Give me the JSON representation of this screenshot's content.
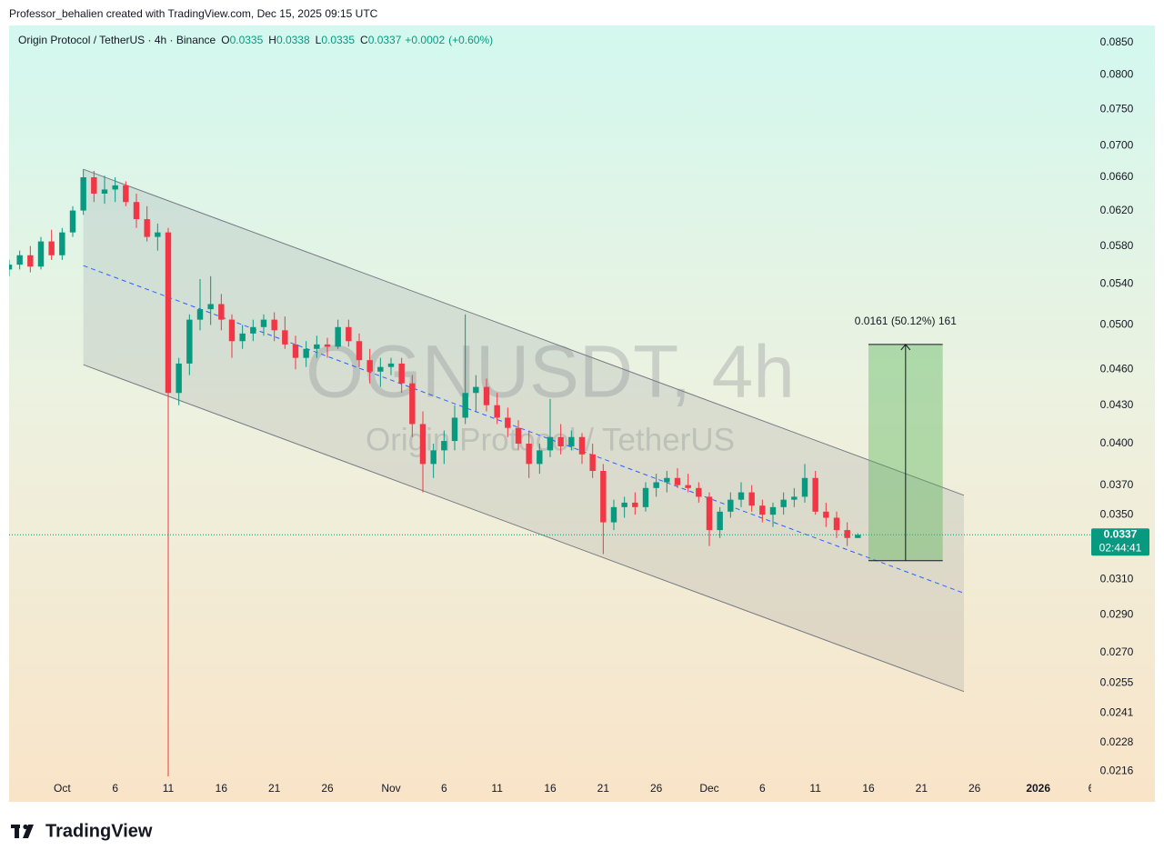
{
  "chart_data": {
    "type": "candlestick",
    "credit": "Professor_behalien created with TradingView.com, Dec 15, 2025 09:15 UTC",
    "title": "Origin Protocol / TetherUS · 4h · Binance",
    "ohlc_labels": [
      "O",
      "H",
      "L",
      "C"
    ],
    "change": "+0.0002",
    "change_pct": "(+0.60%)",
    "watermark": {
      "symbol": "OGNUSDT, 4h",
      "name": "Origin Protocol / TetherUS"
    },
    "countdown": "02:44:41",
    "footer_brand": "TradingView",
    "up_color": "#089981",
    "down_color": "#f23645",
    "log_scale": true,
    "grid": false,
    "xlim": [
      "2025-09-26",
      "2026-01-06"
    ],
    "ylim": [
      0.0204,
      0.0878
    ],
    "xticks": [
      {
        "value": "2025-10-01",
        "label": "Oct"
      },
      {
        "value": "2025-10-06",
        "label": "6"
      },
      {
        "value": "2025-10-11",
        "label": "11"
      },
      {
        "value": "2025-10-16",
        "label": "16"
      },
      {
        "value": "2025-10-21",
        "label": "21"
      },
      {
        "value": "2025-10-26",
        "label": "26"
      },
      {
        "value": "2025-11-01",
        "label": "Nov"
      },
      {
        "value": "2025-11-06",
        "label": "6"
      },
      {
        "value": "2025-11-11",
        "label": "11"
      },
      {
        "value": "2025-11-16",
        "label": "16"
      },
      {
        "value": "2025-11-21",
        "label": "21"
      },
      {
        "value": "2025-11-26",
        "label": "26"
      },
      {
        "value": "2025-12-01",
        "label": "Dec"
      },
      {
        "value": "2025-12-06",
        "label": "6"
      },
      {
        "value": "2025-12-11",
        "label": "11"
      },
      {
        "value": "2025-12-16",
        "label": "16"
      },
      {
        "value": "2025-12-21",
        "label": "21"
      },
      {
        "value": "2025-12-26",
        "label": "26"
      },
      {
        "value": "2026-01-01",
        "label": "2026"
      },
      {
        "value": "2026-01-06",
        "label": "6"
      }
    ],
    "yticks": [
      {
        "value": 0.085,
        "label": "0.0850"
      },
      {
        "value": 0.08,
        "label": "0.0800"
      },
      {
        "value": 0.075,
        "label": "0.0750"
      },
      {
        "value": 0.07,
        "label": "0.0700"
      },
      {
        "value": 0.066,
        "label": "0.0660"
      },
      {
        "value": 0.062,
        "label": "0.0620"
      },
      {
        "value": 0.058,
        "label": "0.0580"
      },
      {
        "value": 0.054,
        "label": "0.0540"
      },
      {
        "value": 0.05,
        "label": "0.0500"
      },
      {
        "value": 0.046,
        "label": "0.0460"
      },
      {
        "value": 0.043,
        "label": "0.0430"
      },
      {
        "value": 0.04,
        "label": "0.0400"
      },
      {
        "value": 0.037,
        "label": "0.0370"
      },
      {
        "value": 0.035,
        "label": "0.0350"
      },
      {
        "value": 0.031,
        "label": "0.0310"
      },
      {
        "value": 0.029,
        "label": "0.0290"
      },
      {
        "value": 0.027,
        "label": "0.0270"
      },
      {
        "value": 0.0255,
        "label": "0.0255"
      },
      {
        "value": 0.0241,
        "label": "0.0241"
      },
      {
        "value": 0.0228,
        "label": "0.0228"
      },
      {
        "value": 0.0216,
        "label": "0.0216"
      }
    ],
    "x": [
      "2025-09-26",
      "2025-09-27",
      "2025-09-28",
      "2025-09-29",
      "2025-09-30",
      "2025-10-01",
      "2025-10-02",
      "2025-10-03",
      "2025-10-04",
      "2025-10-05",
      "2025-10-06",
      "2025-10-07",
      "2025-10-08",
      "2025-10-09",
      "2025-10-10",
      "2025-10-11",
      "2025-10-12",
      "2025-10-13",
      "2025-10-14",
      "2025-10-15",
      "2025-10-16",
      "2025-10-17",
      "2025-10-18",
      "2025-10-19",
      "2025-10-20",
      "2025-10-21",
      "2025-10-22",
      "2025-10-23",
      "2025-10-24",
      "2025-10-25",
      "2025-10-26",
      "2025-10-27",
      "2025-10-28",
      "2025-10-29",
      "2025-10-30",
      "2025-10-31",
      "2025-11-01",
      "2025-11-02",
      "2025-11-03",
      "2025-11-04",
      "2025-11-05",
      "2025-11-06",
      "2025-11-07",
      "2025-11-08",
      "2025-11-09",
      "2025-11-10",
      "2025-11-11",
      "2025-11-12",
      "2025-11-13",
      "2025-11-14",
      "2025-11-15",
      "2025-11-16",
      "2025-11-17",
      "2025-11-18",
      "2025-11-19",
      "2025-11-20",
      "2025-11-21",
      "2025-11-22",
      "2025-11-23",
      "2025-11-24",
      "2025-11-25",
      "2025-11-26",
      "2025-11-27",
      "2025-11-28",
      "2025-11-29",
      "2025-11-30",
      "2025-12-01",
      "2025-12-02",
      "2025-12-03",
      "2025-12-04",
      "2025-12-05",
      "2025-12-06",
      "2025-12-07",
      "2025-12-08",
      "2025-12-09",
      "2025-12-10",
      "2025-12-11",
      "2025-12-12",
      "2025-12-13",
      "2025-12-14",
      "2025-12-15"
    ],
    "open": [
      0.0555,
      0.056,
      0.057,
      0.0558,
      0.0585,
      0.057,
      0.0595,
      0.062,
      0.066,
      0.064,
      0.0645,
      0.065,
      0.063,
      0.061,
      0.059,
      0.0595,
      0.044,
      0.0465,
      0.0505,
      0.0515,
      0.052,
      0.0505,
      0.0485,
      0.0492,
      0.0498,
      0.0505,
      0.0495,
      0.0482,
      0.047,
      0.0478,
      0.0482,
      0.048,
      0.0498,
      0.0485,
      0.0468,
      0.0458,
      0.0462,
      0.0465,
      0.0448,
      0.0415,
      0.0385,
      0.0395,
      0.0402,
      0.042,
      0.044,
      0.0445,
      0.043,
      0.042,
      0.0412,
      0.04,
      0.0385,
      0.0395,
      0.0405,
      0.0398,
      0.0405,
      0.0392,
      0.038,
      0.0345,
      0.0355,
      0.0358,
      0.0355,
      0.0368,
      0.0372,
      0.0375,
      0.037,
      0.0368,
      0.0362,
      0.034,
      0.0352,
      0.036,
      0.0365,
      0.0356,
      0.035,
      0.0355,
      0.036,
      0.0362,
      0.0375,
      0.0352,
      0.0348,
      0.034,
      0.0335
    ],
    "high": [
      0.0565,
      0.0575,
      0.058,
      0.059,
      0.0598,
      0.06,
      0.0625,
      0.067,
      0.0668,
      0.0662,
      0.066,
      0.0655,
      0.064,
      0.0625,
      0.0605,
      0.06,
      0.047,
      0.051,
      0.0545,
      0.0548,
      0.053,
      0.051,
      0.05,
      0.0505,
      0.051,
      0.0512,
      0.0508,
      0.049,
      0.0485,
      0.049,
      0.0488,
      0.0505,
      0.0505,
      0.0492,
      0.0478,
      0.047,
      0.047,
      0.047,
      0.0455,
      0.0425,
      0.04,
      0.041,
      0.043,
      0.051,
      0.0455,
      0.0452,
      0.044,
      0.0428,
      0.0418,
      0.041,
      0.04,
      0.0435,
      0.0415,
      0.041,
      0.0408,
      0.04,
      0.0385,
      0.036,
      0.0362,
      0.0365,
      0.0372,
      0.0378,
      0.038,
      0.0382,
      0.0378,
      0.0372,
      0.0365,
      0.0355,
      0.0365,
      0.0372,
      0.037,
      0.036,
      0.0358,
      0.0365,
      0.0368,
      0.0385,
      0.038,
      0.0358,
      0.0352,
      0.0345,
      0.0338
    ],
    "low": [
      0.0548,
      0.0555,
      0.0552,
      0.0555,
      0.0565,
      0.0565,
      0.059,
      0.0615,
      0.063,
      0.0628,
      0.063,
      0.0625,
      0.06,
      0.0585,
      0.0575,
      0.021,
      0.043,
      0.0455,
      0.0495,
      0.05,
      0.0495,
      0.047,
      0.0478,
      0.0485,
      0.049,
      0.0485,
      0.0478,
      0.046,
      0.0462,
      0.047,
      0.047,
      0.0478,
      0.048,
      0.0462,
      0.0448,
      0.0445,
      0.0455,
      0.044,
      0.0405,
      0.0365,
      0.0375,
      0.0385,
      0.0395,
      0.0415,
      0.0425,
      0.0425,
      0.0415,
      0.0405,
      0.0395,
      0.0375,
      0.0378,
      0.039,
      0.0392,
      0.0395,
      0.0385,
      0.0375,
      0.0325,
      0.034,
      0.0348,
      0.035,
      0.0352,
      0.0362,
      0.0365,
      0.0368,
      0.0365,
      0.0358,
      0.033,
      0.0335,
      0.0348,
      0.0355,
      0.0352,
      0.0345,
      0.0342,
      0.035,
      0.0355,
      0.0358,
      0.035,
      0.0342,
      0.0335,
      0.033,
      0.0335
    ],
    "close": [
      0.056,
      0.057,
      0.0558,
      0.0585,
      0.057,
      0.0595,
      0.062,
      0.066,
      0.064,
      0.0645,
      0.065,
      0.063,
      0.061,
      0.059,
      0.0595,
      0.044,
      0.0465,
      0.0505,
      0.0515,
      0.052,
      0.0505,
      0.0485,
      0.0492,
      0.0498,
      0.0505,
      0.0495,
      0.0482,
      0.047,
      0.0478,
      0.0482,
      0.048,
      0.0498,
      0.0485,
      0.0468,
      0.0458,
      0.0462,
      0.0465,
      0.0448,
      0.0415,
      0.0385,
      0.0395,
      0.0402,
      0.042,
      0.044,
      0.0445,
      0.043,
      0.042,
      0.0412,
      0.04,
      0.0385,
      0.0395,
      0.0405,
      0.0398,
      0.0405,
      0.0392,
      0.038,
      0.0345,
      0.0355,
      0.0358,
      0.0355,
      0.0368,
      0.0372,
      0.0375,
      0.037,
      0.0368,
      0.0362,
      0.034,
      0.0352,
      0.036,
      0.0365,
      0.0356,
      0.035,
      0.0355,
      0.036,
      0.0362,
      0.0375,
      0.0352,
      0.0348,
      0.034,
      0.0335,
      0.0337
    ],
    "channel": {
      "upper": [
        {
          "x": "2025-10-03",
          "y": 0.067
        },
        {
          "x": "2025-12-25",
          "y": 0.0363
        }
      ],
      "median": [
        {
          "x": "2025-10-03",
          "y": 0.0559
        },
        {
          "x": "2025-12-25",
          "y": 0.0302
        }
      ],
      "lower": [
        {
          "x": "2025-10-03",
          "y": 0.0464
        },
        {
          "x": "2025-12-25",
          "y": 0.0251
        }
      ]
    },
    "long_position": {
      "x": [
        "2025-12-16",
        "2025-12-23"
      ],
      "entry": 0.0321,
      "target": 0.0482,
      "label": "0.0161 (50.12%) 161"
    }
  }
}
